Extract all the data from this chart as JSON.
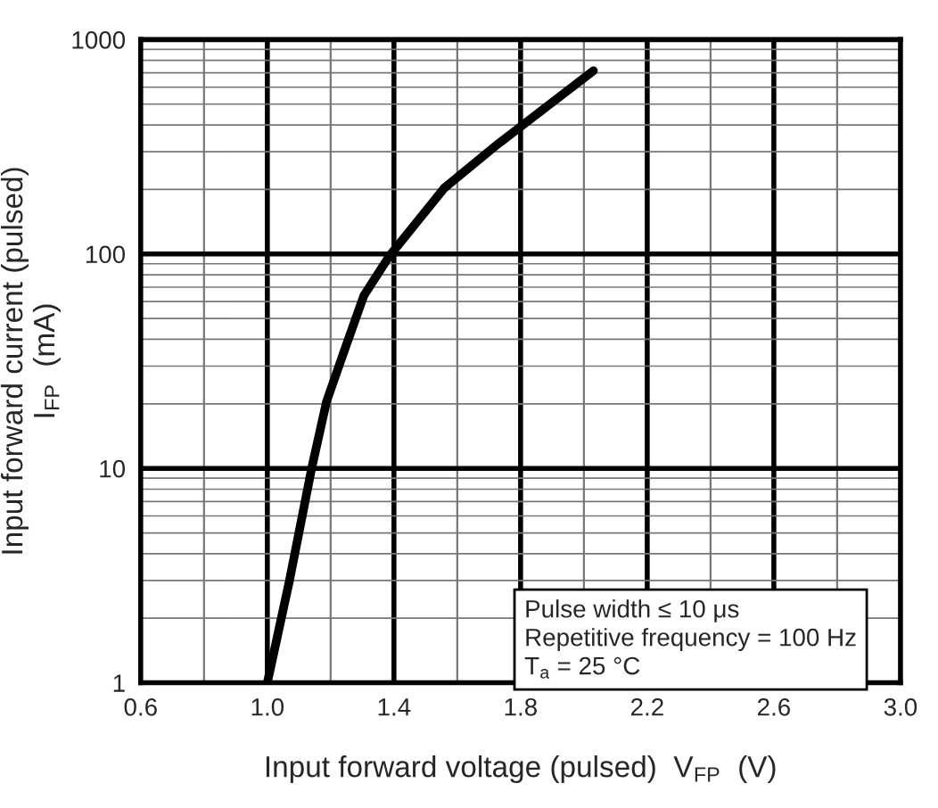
{
  "chart_data": {
    "type": "line",
    "xlabel": "Input forward voltage (pulsed)  V$_{FP}$  (V)",
    "ylabel": "Input forward current (pulsed)\nI$_{FP}$  (mA)",
    "series": [
      {
        "color": "#000000",
        "x": [
          1.0,
          1.07,
          1.14,
          1.187,
          1.245,
          1.305,
          1.386,
          1.559,
          1.73,
          2.03
        ],
        "values": [
          1,
          3,
          10,
          20.5,
          36,
          64,
          98,
          203,
          327,
          716
        ]
      }
    ],
    "log": "y",
    "xlim": [
      0.6,
      3.0
    ],
    "ylim": [
      1,
      1000
    ],
    "xticks": [
      0.6,
      {
        "value": 1.0,
        "label": "1.0"
      },
      1.4,
      1.8,
      2.2,
      2.6,
      {
        "value": 3.0,
        "label": "3.0"
      }
    ],
    "yticks": [
      1,
      10,
      100,
      1000
    ],
    "grid": true,
    "marker": "none",
    "line_style": "solid",
    "annotations": [
      "Pulse width ≤ 10 μs",
      "Repetitive frequency = 100 Hz",
      "T$_{a}$ = 25 °C"
    ]
  }
}
